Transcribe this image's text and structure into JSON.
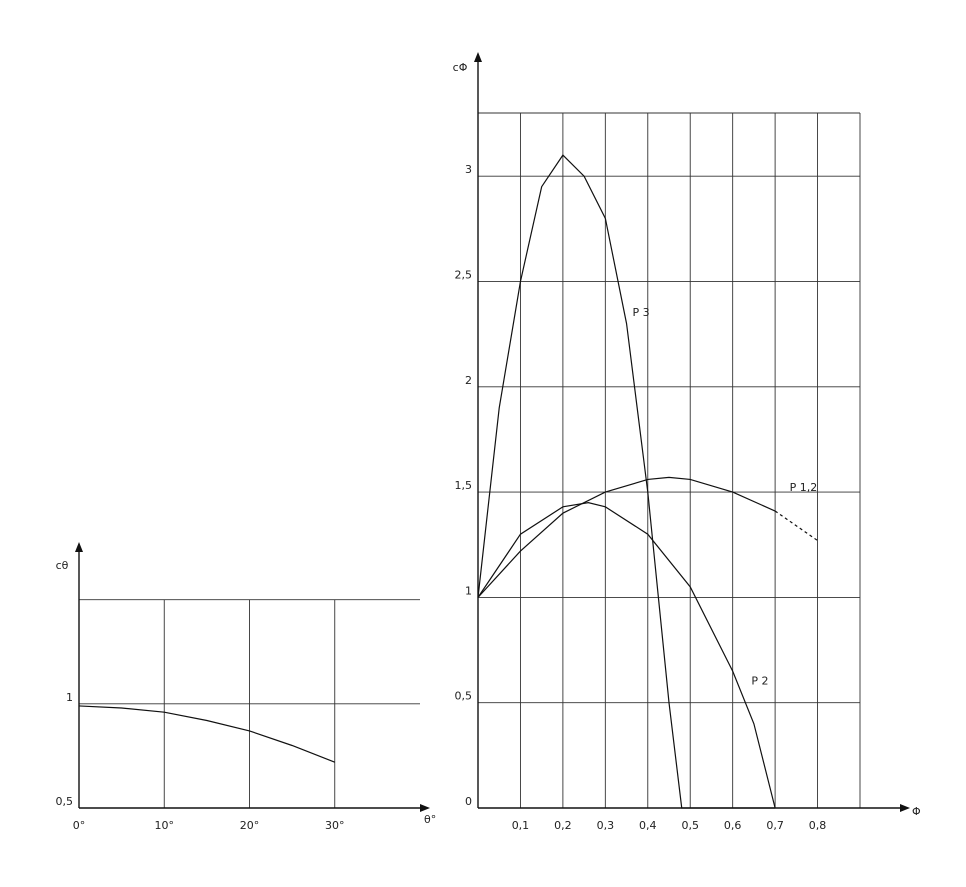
{
  "chart_data": [
    {
      "type": "line",
      "y_label": "cθ",
      "x_label": "θ°",
      "x": [
        0,
        5,
        10,
        15,
        20,
        25,
        30
      ],
      "series": [
        {
          "name": null,
          "color": "#111111",
          "values": [
            0.99,
            0.98,
            0.96,
            0.92,
            0.87,
            0.8,
            0.72
          ]
        }
      ],
      "xlim": [
        0,
        40
      ],
      "xticks": [
        {
          "value": 0,
          "label": "0°"
        },
        {
          "value": 10,
          "label": "10°"
        },
        {
          "value": 20,
          "label": "20°"
        },
        {
          "value": 30,
          "label": "30°"
        }
      ],
      "ylim": [
        0.5,
        1.7
      ],
      "yticks": [
        {
          "value": 0.5,
          "label": "0,5"
        },
        1,
        {
          "value": 1.5,
          "label": null
        }
      ],
      "grid": true
    },
    {
      "type": "line",
      "y_label": "cΦ",
      "x_label": "Φ",
      "series": [
        {
          "name": "P 3",
          "color": "#111111",
          "x": [
            0,
            0.05,
            0.1,
            0.15,
            0.2,
            0.25,
            0.3,
            0.35,
            0.4,
            0.45,
            0.48,
            0.7
          ],
          "values": [
            1,
            1.9,
            2.5,
            2.95,
            3.1,
            3.0,
            2.8,
            2.3,
            1.5,
            0.5,
            0,
            0
          ]
        },
        {
          "name": "P 2",
          "color": "#111111",
          "x": [
            0,
            0.1,
            0.2,
            0.26,
            0.3,
            0.4,
            0.5,
            0.6,
            0.65,
            0.7
          ],
          "values": [
            1,
            1.3,
            1.43,
            1.45,
            1.43,
            1.3,
            1.05,
            0.65,
            0.4,
            0
          ]
        },
        {
          "name": "P 1,2",
          "color": "#111111",
          "x": [
            0,
            0.1,
            0.2,
            0.3,
            0.4,
            0.45,
            0.5,
            0.6,
            0.7,
            0.8
          ],
          "values": [
            1,
            1.22,
            1.4,
            1.5,
            1.56,
            1.57,
            1.56,
            1.5,
            1.41,
            null
          ],
          "dashed_values": [
            null,
            null,
            null,
            null,
            null,
            null,
            null,
            null,
            1.41,
            1.27
          ]
        }
      ],
      "xlim": [
        0,
        0.9
      ],
      "xticks": [
        {
          "value": 0.1,
          "label": "0,1"
        },
        {
          "value": 0.2,
          "label": "0,2"
        },
        {
          "value": 0.3,
          "label": "0,3"
        },
        {
          "value": 0.4,
          "label": "0,4"
        },
        {
          "value": 0.5,
          "label": "0,5"
        },
        {
          "value": 0.6,
          "label": "0,6"
        },
        {
          "value": 0.7,
          "label": "0,7"
        },
        {
          "value": 0.8,
          "label": "0,8"
        },
        {
          "value": 0.9,
          "label": null
        }
      ],
      "ylim": [
        0,
        3.3
      ],
      "yticks": [
        0,
        {
          "value": 0.5,
          "label": "0,5"
        },
        1,
        {
          "value": 1.5,
          "label": "1,5"
        },
        2,
        {
          "value": 2.5,
          "label": "2,5"
        },
        3
      ],
      "grid": true
    }
  ]
}
